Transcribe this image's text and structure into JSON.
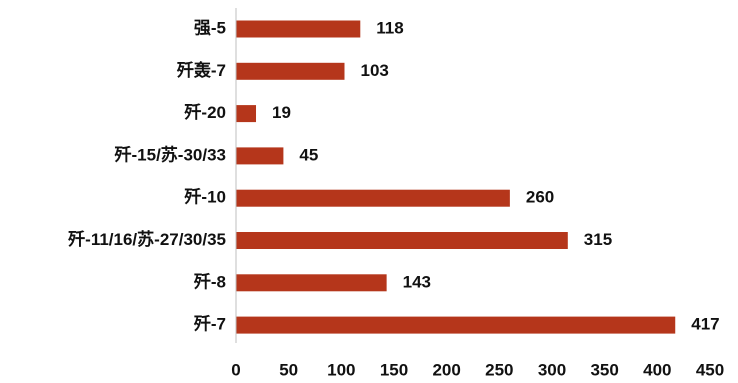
{
  "chart_data": {
    "type": "bar",
    "orientation": "horizontal",
    "categories": [
      "强-5",
      "歼轰-7",
      "歼-20",
      "歼-15/苏-30/33",
      "歼-10",
      "歼-11/16/苏-27/30/35",
      "歼-8",
      "歼-7"
    ],
    "values": [
      118,
      103,
      19,
      45,
      260,
      315,
      143,
      417
    ],
    "title": "",
    "xlabel": "",
    "ylabel": "",
    "xlim": [
      0,
      450
    ],
    "x_ticks": [
      0,
      50,
      100,
      150,
      200,
      250,
      300,
      350,
      400,
      450
    ],
    "grid": false,
    "legend": "none",
    "bar_color": "#B5361B",
    "axis_color": "#BFBFBF"
  }
}
